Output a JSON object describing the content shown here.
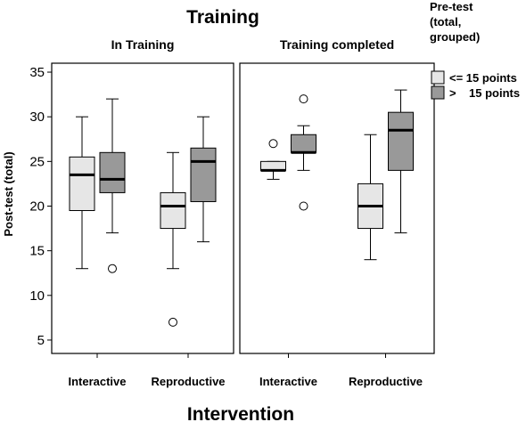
{
  "chart_data": {
    "type": "boxplot",
    "title": "Training",
    "xlabel": "Intervention",
    "ylabel": "Post-test (total)",
    "ylim": [
      3.5,
      36
    ],
    "yticks": [
      5,
      10,
      15,
      20,
      25,
      30,
      35
    ],
    "legend": {
      "title": [
        "Pre-test",
        "(total,",
        "grouped)"
      ],
      "placement": "right",
      "items": [
        {
          "label": "<= 15 points",
          "color": "#e6e6e6"
        },
        {
          "label": ">    15 points",
          "color": "#999999"
        }
      ]
    },
    "panels": [
      {
        "title": "In Training",
        "categories": [
          "Interactive",
          "Reproductive"
        ],
        "groups": [
          {
            "category": "Interactive",
            "boxes": [
              {
                "series": "<= 15 points",
                "whisker_low": 13,
                "q1": 19.5,
                "median": 23.5,
                "q3": 25.5,
                "whisker_high": 30,
                "outliers": []
              },
              {
                "series": ">    15 points",
                "whisker_low": 17,
                "q1": 21.5,
                "median": 23,
                "q3": 26,
                "whisker_high": 32,
                "outliers": [
                  13
                ]
              }
            ]
          },
          {
            "category": "Reproductive",
            "boxes": [
              {
                "series": "<= 15 points",
                "whisker_low": 13,
                "q1": 17.5,
                "median": 20,
                "q3": 21.5,
                "whisker_high": 26,
                "outliers": [
                  7
                ]
              },
              {
                "series": ">    15 points",
                "whisker_low": 16,
                "q1": 20.5,
                "median": 25,
                "q3": 26.5,
                "whisker_high": 30,
                "outliers": []
              }
            ]
          }
        ]
      },
      {
        "title": "Training completed",
        "categories": [
          "Interactive",
          "Reproductive"
        ],
        "groups": [
          {
            "category": "Interactive",
            "boxes": [
              {
                "series": "<= 15 points",
                "whisker_low": 23,
                "q1": 24,
                "median": 24,
                "q3": 25,
                "whisker_high": 25,
                "outliers": [
                  27
                ]
              },
              {
                "series": ">    15 points",
                "whisker_low": 24,
                "q1": 26,
                "median": 26,
                "q3": 28,
                "whisker_high": 29,
                "outliers": [
                  32,
                  20
                ]
              }
            ]
          },
          {
            "category": "Reproductive",
            "boxes": [
              {
                "series": "<= 15 points",
                "whisker_low": 14,
                "q1": 17.5,
                "median": 20,
                "q3": 22.5,
                "whisker_high": 28,
                "outliers": []
              },
              {
                "series": ">    15 points",
                "whisker_low": 17,
                "q1": 24,
                "median": 28.5,
                "q3": 30.5,
                "whisker_high": 33,
                "outliers": []
              }
            ]
          }
        ]
      }
    ]
  }
}
